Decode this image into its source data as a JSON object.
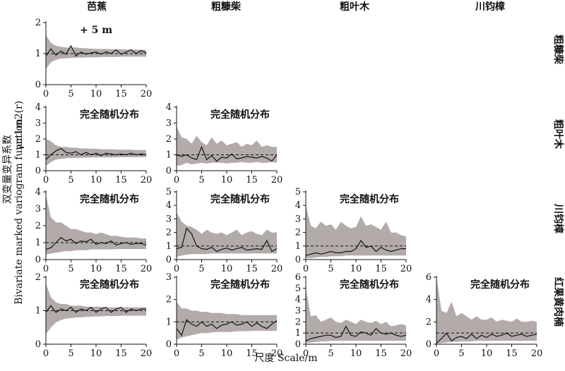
{
  "colors": {
    "band": "#b3aaaa",
    "line": "#111111",
    "dashed": "#111111",
    "axis": "#111111"
  },
  "figure": {
    "column_titles": [
      "芭蕉",
      "粗糠柴",
      "粗叶木",
      "川钧樟"
    ],
    "row_titles": [
      "粗糠柴",
      "粗叶木",
      "川钧樟",
      "红果黄肉楠"
    ],
    "xlabel": "尺度 Scale/m",
    "ylabel_cn": "双变量变异系数",
    "ylabel_en": "Bivariate marked variogram function",
    "ylabel_sym": "γm1m2(r)"
  },
  "chart_data": [
    {
      "type": "line",
      "row": 0,
      "col": 0,
      "annotation": "+ 5 m",
      "xlim": [
        0,
        20
      ],
      "ylim": [
        0,
        2
      ],
      "xticks": [
        0,
        5,
        10,
        15,
        20
      ],
      "yticks": [
        0,
        1,
        2
      ],
      "reference": 1,
      "x": [
        0,
        1,
        2,
        3,
        4,
        5,
        6,
        7,
        8,
        9,
        10,
        11,
        12,
        13,
        14,
        15,
        16,
        17,
        18,
        19,
        20
      ],
      "observed": [
        0.92,
        1.15,
        0.95,
        1.08,
        0.98,
        1.25,
        0.92,
        1.05,
        0.98,
        1.02,
        1.05,
        0.98,
        1.06,
        1.0,
        1.12,
        0.98,
        1.05,
        1.12,
        1.0,
        1.1,
        1.02
      ],
      "envelope_upper": [
        1.6,
        1.35,
        1.25,
        1.22,
        1.2,
        1.2,
        1.2,
        1.18,
        1.17,
        1.16,
        1.15,
        1.15,
        1.15,
        1.14,
        1.14,
        1.14,
        1.13,
        1.13,
        1.13,
        1.12,
        1.12
      ],
      "envelope_lower": [
        0.5,
        0.72,
        0.8,
        0.84,
        0.85,
        0.86,
        0.87,
        0.87,
        0.88,
        0.88,
        0.88,
        0.89,
        0.89,
        0.89,
        0.89,
        0.9,
        0.9,
        0.9,
        0.9,
        0.9,
        0.9
      ]
    },
    {
      "type": "line",
      "row": 1,
      "col": 0,
      "annotation": "完全随机分布",
      "xlim": [
        0,
        20
      ],
      "ylim": [
        0,
        4
      ],
      "xticks": [
        0,
        5,
        10,
        15,
        20
      ],
      "yticks": [
        0,
        1,
        2,
        3,
        4
      ],
      "reference": 1,
      "x": [
        0,
        1,
        2,
        3,
        4,
        5,
        6,
        7,
        8,
        9,
        10,
        11,
        12,
        13,
        14,
        15,
        16,
        17,
        18,
        19,
        20
      ],
      "observed": [
        0.7,
        1.0,
        1.25,
        1.4,
        1.15,
        1.1,
        1.2,
        1.0,
        1.15,
        1.0,
        1.1,
        0.95,
        1.1,
        1.05,
        1.0,
        1.05,
        1.0,
        1.1,
        1.0,
        1.05,
        1.0
      ],
      "envelope_upper": [
        2.0,
        1.85,
        1.6,
        1.5,
        1.5,
        1.45,
        1.45,
        1.4,
        1.4,
        1.38,
        1.38,
        1.35,
        1.35,
        1.35,
        1.33,
        1.32,
        1.32,
        1.32,
        1.3,
        1.3,
        1.3
      ],
      "envelope_lower": [
        0.3,
        0.55,
        0.7,
        0.75,
        0.78,
        0.8,
        0.8,
        0.82,
        0.82,
        0.83,
        0.83,
        0.84,
        0.84,
        0.84,
        0.85,
        0.85,
        0.85,
        0.85,
        0.86,
        0.86,
        0.86
      ]
    },
    {
      "type": "line",
      "row": 1,
      "col": 1,
      "annotation": "完全随机分布",
      "xlim": [
        0,
        20
      ],
      "ylim": [
        0,
        4
      ],
      "xticks": [
        0,
        5,
        10,
        15,
        20
      ],
      "yticks": [
        0,
        1,
        2,
        3,
        4
      ],
      "reference": 1,
      "x": [
        0,
        1,
        2,
        3,
        4,
        5,
        6,
        7,
        8,
        9,
        10,
        11,
        12,
        13,
        14,
        15,
        16,
        17,
        18,
        19,
        20
      ],
      "observed": [
        1.0,
        0.9,
        1.0,
        0.8,
        0.7,
        1.5,
        0.7,
        0.95,
        0.6,
        0.85,
        0.8,
        1.05,
        0.75,
        0.8,
        0.9,
        0.85,
        0.8,
        0.9,
        0.8,
        0.6,
        1.0
      ],
      "envelope_upper": [
        2.8,
        2.1,
        2.0,
        1.7,
        2.2,
        1.8,
        1.6,
        2.1,
        1.7,
        1.9,
        1.6,
        1.7,
        1.8,
        1.5,
        1.7,
        1.6,
        1.9,
        1.5,
        1.6,
        1.5,
        1.5
      ],
      "envelope_lower": [
        0.3,
        0.35,
        0.5,
        0.4,
        0.45,
        0.5,
        0.45,
        0.5,
        0.5,
        0.5,
        0.45,
        0.5,
        0.5,
        0.55,
        0.5,
        0.5,
        0.55,
        0.5,
        0.5,
        0.55,
        0.5
      ]
    },
    {
      "type": "line",
      "row": 2,
      "col": 0,
      "annotation": "完全随机分布",
      "xlim": [
        0,
        20
      ],
      "ylim": [
        0,
        4
      ],
      "xticks": [
        0,
        5,
        10,
        15,
        20
      ],
      "yticks": [
        0,
        1,
        2,
        3,
        4
      ],
      "reference": 1,
      "x": [
        0,
        1,
        2,
        3,
        4,
        5,
        6,
        7,
        8,
        9,
        10,
        11,
        12,
        13,
        14,
        15,
        16,
        17,
        18,
        19,
        20
      ],
      "observed": [
        0.6,
        0.7,
        1.0,
        1.3,
        1.1,
        1.2,
        0.95,
        1.1,
        1.05,
        1.2,
        0.9,
        1.0,
        0.95,
        1.1,
        0.85,
        0.95,
        1.0,
        0.9,
        0.95,
        0.95,
        0.85
      ],
      "envelope_upper": [
        3.8,
        2.5,
        2.2,
        2.2,
        2.0,
        1.8,
        1.8,
        1.7,
        1.6,
        1.6,
        1.5,
        1.6,
        1.5,
        1.4,
        1.4,
        1.35,
        1.3,
        1.3,
        1.3,
        1.25,
        1.25
      ],
      "envelope_lower": [
        0.3,
        0.35,
        0.4,
        0.45,
        0.5,
        0.5,
        0.55,
        0.55,
        0.55,
        0.6,
        0.6,
        0.6,
        0.6,
        0.6,
        0.62,
        0.62,
        0.62,
        0.62,
        0.62,
        0.62,
        0.62
      ]
    },
    {
      "type": "line",
      "row": 2,
      "col": 1,
      "annotation": "完全随机分布",
      "xlim": [
        0,
        20
      ],
      "ylim": [
        0,
        5
      ],
      "xticks": [
        0,
        5,
        10,
        15,
        20
      ],
      "yticks": [
        0,
        1,
        2,
        3,
        4,
        5
      ],
      "reference": 1,
      "x": [
        0,
        1,
        2,
        3,
        4,
        5,
        6,
        7,
        8,
        9,
        10,
        11,
        12,
        13,
        14,
        15,
        16,
        17,
        18,
        19,
        20
      ],
      "observed": [
        0.8,
        0.9,
        2.3,
        1.9,
        1.0,
        0.8,
        0.75,
        0.9,
        0.6,
        0.75,
        0.85,
        0.7,
        0.8,
        0.9,
        0.7,
        0.75,
        0.8,
        0.75,
        1.4,
        0.6,
        0.8
      ],
      "envelope_upper": [
        3.5,
        2.8,
        2.5,
        2.4,
        2.2,
        1.9,
        2.2,
        2.0,
        1.9,
        2.0,
        1.8,
        2.0,
        2.2,
        1.8,
        2.0,
        2.1,
        1.9,
        1.8,
        2.2,
        2.0,
        2.0
      ],
      "envelope_lower": [
        0.2,
        0.3,
        0.35,
        0.4,
        0.4,
        0.4,
        0.4,
        0.45,
        0.45,
        0.45,
        0.45,
        0.45,
        0.45,
        0.45,
        0.45,
        0.45,
        0.45,
        0.45,
        0.45,
        0.45,
        0.45
      ]
    },
    {
      "type": "line",
      "row": 2,
      "col": 2,
      "annotation": "完全随机分布",
      "xlim": [
        0,
        20
      ],
      "ylim": [
        0,
        5
      ],
      "xticks": [
        0,
        5,
        10,
        15,
        20
      ],
      "yticks": [
        0,
        1,
        2,
        3,
        4,
        5
      ],
      "reference": 1,
      "x": [
        0,
        1,
        2,
        3,
        4,
        5,
        6,
        7,
        8,
        9,
        10,
        11,
        12,
        13,
        14,
        15,
        16,
        17,
        18,
        19,
        20
      ],
      "observed": [
        0.3,
        0.4,
        0.5,
        0.4,
        0.5,
        0.6,
        0.5,
        0.5,
        0.6,
        0.6,
        0.8,
        1.4,
        0.9,
        1.0,
        0.6,
        0.9,
        0.7,
        0.6,
        0.7,
        0.8,
        0.8
      ],
      "envelope_upper": [
        4.0,
        2.5,
        2.3,
        2.8,
        2.5,
        2.6,
        2.2,
        2.8,
        2.5,
        2.3,
        2.4,
        3.2,
        2.5,
        2.6,
        2.4,
        2.2,
        2.8,
        2.0,
        2.0,
        1.8,
        1.7
      ],
      "envelope_lower": [
        0.1,
        0.1,
        0.15,
        0.2,
        0.2,
        0.25,
        0.25,
        0.25,
        0.3,
        0.3,
        0.3,
        0.3,
        0.3,
        0.3,
        0.3,
        0.3,
        0.3,
        0.3,
        0.3,
        0.3,
        0.3
      ]
    },
    {
      "type": "line",
      "row": 3,
      "col": 0,
      "annotation": "完全随机分布",
      "xlim": [
        0,
        20
      ],
      "ylim": [
        0,
        2
      ],
      "xticks": [
        0,
        5,
        10,
        15,
        20
      ],
      "yticks": [
        0,
        1,
        2
      ],
      "reference": 1,
      "x": [
        0,
        1,
        2,
        3,
        4,
        5,
        6,
        7,
        8,
        9,
        10,
        11,
        12,
        13,
        14,
        15,
        16,
        17,
        18,
        19,
        20
      ],
      "observed": [
        0.95,
        1.15,
        0.95,
        1.05,
        1.0,
        1.1,
        0.95,
        1.05,
        1.0,
        1.1,
        0.95,
        1.05,
        1.1,
        0.95,
        1.05,
        1.1,
        0.95,
        1.05,
        1.0,
        1.05,
        1.05
      ],
      "envelope_upper": [
        1.8,
        1.4,
        1.25,
        1.2,
        1.2,
        1.15,
        1.15,
        1.15,
        1.12,
        1.12,
        1.12,
        1.12,
        1.1,
        1.1,
        1.1,
        1.1,
        1.1,
        1.1,
        1.1,
        1.1,
        1.1
      ],
      "envelope_lower": [
        0.3,
        0.5,
        0.65,
        0.72,
        0.76,
        0.78,
        0.8,
        0.8,
        0.82,
        0.82,
        0.83,
        0.83,
        0.84,
        0.84,
        0.84,
        0.85,
        0.85,
        0.85,
        0.85,
        0.85,
        0.85
      ]
    },
    {
      "type": "line",
      "row": 3,
      "col": 1,
      "annotation": "完全随机分布",
      "xlim": [
        0,
        20
      ],
      "ylim": [
        0,
        3
      ],
      "xticks": [
        0,
        5,
        10,
        15,
        20
      ],
      "yticks": [
        0,
        1,
        2,
        3
      ],
      "reference": 1,
      "x": [
        0,
        1,
        2,
        3,
        4,
        5,
        6,
        7,
        8,
        9,
        10,
        11,
        12,
        13,
        14,
        15,
        16,
        17,
        18,
        19,
        20
      ],
      "observed": [
        0.7,
        0.4,
        1.1,
        0.9,
        0.8,
        1.0,
        0.8,
        0.9,
        0.7,
        0.85,
        0.9,
        1.0,
        0.85,
        0.9,
        1.0,
        0.8,
        0.95,
        0.8,
        0.7,
        0.9,
        1.05
      ],
      "envelope_upper": [
        1.9,
        1.6,
        1.6,
        1.5,
        1.5,
        1.45,
        1.45,
        1.4,
        1.4,
        1.4,
        1.35,
        1.35,
        1.35,
        1.3,
        1.3,
        1.3,
        1.3,
        1.3,
        1.3,
        1.3,
        1.3
      ],
      "envelope_lower": [
        0.2,
        0.3,
        0.35,
        0.4,
        0.45,
        0.5,
        0.5,
        0.52,
        0.55,
        0.55,
        0.55,
        0.55,
        0.58,
        0.58,
        0.58,
        0.6,
        0.6,
        0.6,
        0.6,
        0.6,
        0.6
      ]
    },
    {
      "type": "line",
      "row": 3,
      "col": 2,
      "annotation": "完全随机分布",
      "xlim": [
        0,
        20
      ],
      "ylim": [
        0,
        6
      ],
      "xticks": [
        0,
        5,
        10,
        15,
        20
      ],
      "yticks": [
        0,
        1,
        2,
        3,
        4,
        5,
        6
      ],
      "reference": 1,
      "x": [
        0,
        1,
        2,
        3,
        4,
        5,
        6,
        7,
        8,
        9,
        10,
        11,
        12,
        13,
        14,
        15,
        16,
        17,
        18,
        19,
        20
      ],
      "observed": [
        0.3,
        0.5,
        0.6,
        0.7,
        0.8,
        0.8,
        0.6,
        0.7,
        1.6,
        0.8,
        0.7,
        1.1,
        1.0,
        0.8,
        1.4,
        1.0,
        0.9,
        1.0,
        0.8,
        0.7,
        0.8
      ],
      "envelope_upper": [
        5.0,
        2.5,
        2.6,
        2.0,
        2.2,
        2.4,
        2.0,
        1.9,
        2.2,
        2.0,
        1.8,
        2.2,
        2.0,
        1.9,
        2.1,
        1.8,
        2.0,
        1.6,
        1.7,
        1.8,
        1.7
      ],
      "envelope_lower": [
        0.1,
        0.15,
        0.2,
        0.25,
        0.25,
        0.3,
        0.3,
        0.3,
        0.3,
        0.3,
        0.3,
        0.3,
        0.3,
        0.3,
        0.3,
        0.3,
        0.3,
        0.3,
        0.3,
        0.3,
        0.3
      ]
    },
    {
      "type": "line",
      "row": 3,
      "col": 3,
      "annotation": "完全随机分布",
      "xlim": [
        0,
        20
      ],
      "ylim": [
        0,
        6
      ],
      "xticks": [
        0,
        5,
        10,
        15,
        20
      ],
      "yticks": [
        0,
        2,
        4,
        6
      ],
      "reference": 1,
      "x": [
        0,
        1,
        2,
        3,
        4,
        5,
        6,
        7,
        8,
        9,
        10,
        11,
        12,
        13,
        14,
        15,
        16,
        17,
        18,
        19,
        20
      ],
      "observed": [
        0.1,
        0.5,
        1.0,
        0.3,
        0.6,
        0.7,
        0.5,
        0.9,
        0.5,
        0.8,
        0.6,
        0.9,
        0.7,
        0.8,
        1.0,
        0.7,
        0.8,
        0.9,
        0.7,
        0.8,
        0.9
      ],
      "envelope_upper": [
        6.0,
        3.0,
        2.8,
        3.8,
        2.5,
        2.8,
        2.5,
        2.2,
        2.5,
        2.2,
        2.2,
        2.4,
        2.0,
        2.2,
        2.1,
        2.0,
        2.3,
        2.0,
        2.0,
        2.1,
        2.0
      ],
      "envelope_lower": [
        0.05,
        0.1,
        0.15,
        0.2,
        0.2,
        0.25,
        0.25,
        0.25,
        0.3,
        0.3,
        0.3,
        0.3,
        0.3,
        0.3,
        0.3,
        0.3,
        0.3,
        0.3,
        0.3,
        0.3,
        0.3
      ]
    }
  ]
}
